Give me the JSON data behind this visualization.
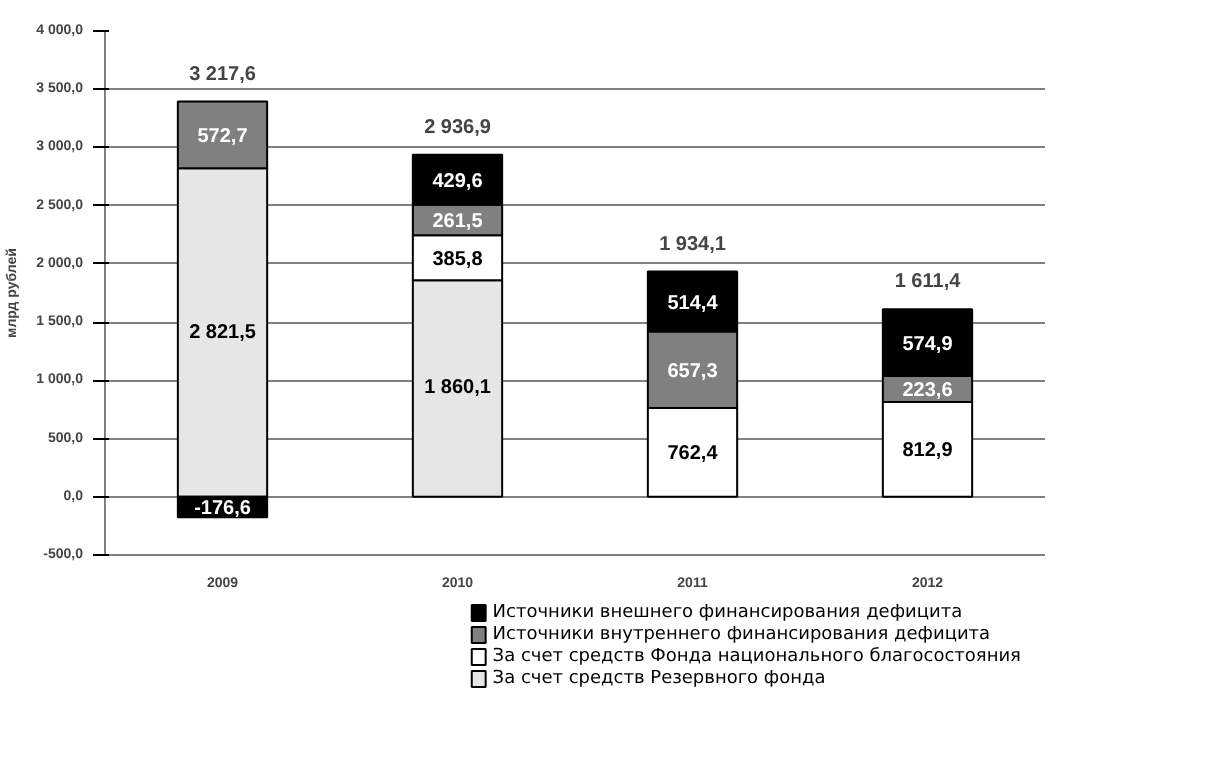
{
  "chart_data": {
    "type": "bar",
    "stacked": true,
    "ylabel": "млрд рублей",
    "categories": [
      "2009",
      "2010",
      "2011",
      "2012"
    ],
    "series": [
      {
        "name": "За счет средств Резервного фонда",
        "color": "#e6e6e6",
        "values": [
          2821.5,
          1860.1,
          null,
          null
        ],
        "value_labels": [
          "2 821,5",
          "1 860,1",
          null,
          null
        ]
      },
      {
        "name": "За счет средств Фонда национального благосостояния",
        "color": "#ffffff",
        "values": [
          null,
          385.8,
          762.4,
          812.9
        ],
        "value_labels": [
          null,
          "385,8",
          "762,4",
          "812,9"
        ]
      },
      {
        "name": "Источники внутреннего финансирования дефицита",
        "color": "#808080",
        "values": [
          572.7,
          261.5,
          657.3,
          223.6
        ],
        "value_labels": [
          "572,7",
          "261,5",
          "657,3",
          "223,6"
        ]
      },
      {
        "name": "Источники внешнего финансирования дефицита",
        "color": "#000000",
        "values": [
          -176.6,
          429.6,
          514.4,
          574.9
        ],
        "value_labels": [
          "-176,6",
          "429,6",
          "514,4",
          "574,9"
        ]
      }
    ],
    "totals": [
      "3 217,6",
      "2 936,9",
      "1 934,1",
      "1 611,4"
    ],
    "ylim": [
      -500,
      4000
    ],
    "yticks": [
      {
        "value": -500,
        "label": "-500,0"
      },
      {
        "value": 0,
        "label": "0,0"
      },
      {
        "value": 500,
        "label": "500,0"
      },
      {
        "value": 1000,
        "label": "1 000,0"
      },
      {
        "value": 1500,
        "label": "1 500,0"
      },
      {
        "value": 2000,
        "label": "2 000,0"
      },
      {
        "value": 2500,
        "label": "2 500,0"
      },
      {
        "value": 3000,
        "label": "3 000,0"
      },
      {
        "value": 3500,
        "label": "3 500,0"
      },
      {
        "value": 4000,
        "label": "4 000,0"
      }
    ],
    "grid": "y",
    "legend": "bottom"
  }
}
